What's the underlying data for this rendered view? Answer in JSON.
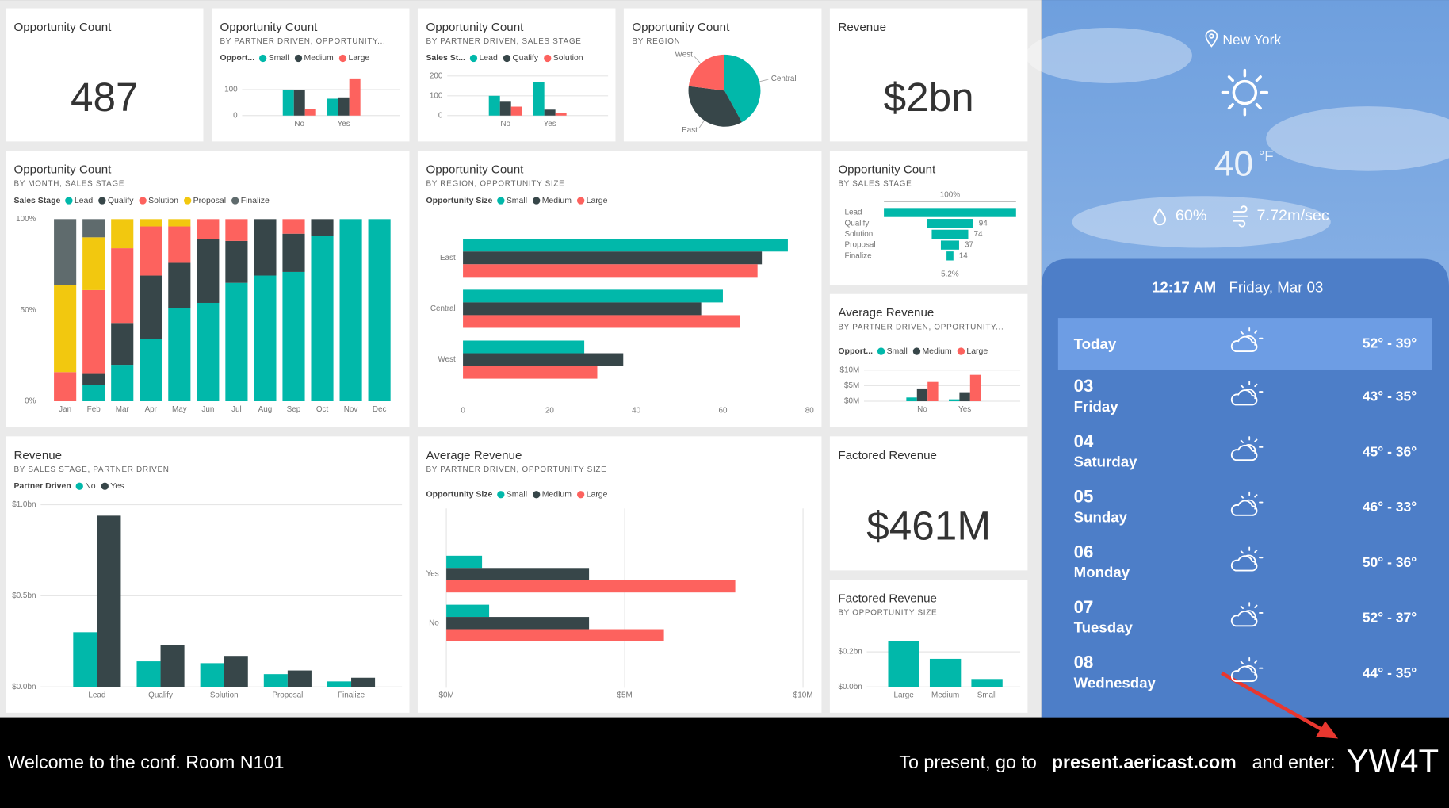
{
  "tiles": [
    {
      "title": "Opportunity Count",
      "value": "487"
    },
    {
      "title": "Opportunity Count",
      "subtitle": "BY PARTNER DRIVEN, OPPORTUNITY...",
      "chart_data": {
        "type": "bar",
        "legend_title": "Opport...",
        "categories": [
          "No",
          "Yes"
        ],
        "series": [
          {
            "name": "Small",
            "color": "#01b8aa",
            "values": [
              100,
              65
            ]
          },
          {
            "name": "Medium",
            "color": "#374649",
            "values": [
              98,
              70
            ]
          },
          {
            "name": "Large",
            "color": "#fd625e",
            "values": [
              25,
              143
            ]
          }
        ],
        "ylim": [
          0,
          160
        ],
        "yticks": [
          0,
          100
        ],
        "grid": true
      }
    },
    {
      "title": "Opportunity Count",
      "subtitle": "BY PARTNER DRIVEN, SALES STAGE",
      "chart_data": {
        "type": "bar",
        "legend_title": "Sales St...",
        "categories": [
          "No",
          "Yes"
        ],
        "series": [
          {
            "name": "Lead",
            "color": "#01b8aa",
            "values": [
              100,
              170
            ]
          },
          {
            "name": "Qualify",
            "color": "#374649",
            "values": [
              70,
              30
            ]
          },
          {
            "name": "Solution",
            "color": "#fd625e",
            "values": [
              45,
              15
            ]
          }
        ],
        "ylim": [
          0,
          210
        ],
        "yticks": [
          0,
          100,
          200
        ],
        "grid": true
      }
    },
    {
      "title": "Opportunity Count",
      "subtitle": "BY REGION",
      "chart_data": {
        "type": "pie",
        "categories": [
          "Central",
          "East",
          "West"
        ],
        "values": [
          42,
          35,
          23
        ],
        "colors": [
          "#01b8aa",
          "#374649",
          "#fd625e"
        ]
      }
    },
    {
      "title": "Revenue",
      "value": "$2bn"
    },
    {
      "title": "Opportunity Count",
      "subtitle": "BY MONTH, SALES STAGE",
      "chart_data": {
        "type": "stacked_bar",
        "legend_title": "Sales Stage",
        "categories": [
          "Jan",
          "Feb",
          "Mar",
          "Apr",
          "May",
          "Jun",
          "Jul",
          "Aug",
          "Sep",
          "Oct",
          "Nov",
          "Dec"
        ],
        "series": [
          {
            "name": "Lead",
            "color": "#01b8aa",
            "values": [
              0,
              9,
              20,
              34,
              51,
              54,
              65,
              69,
              71,
              91,
              100,
              100
            ]
          },
          {
            "name": "Qualify",
            "color": "#374649",
            "values": [
              0,
              6,
              23,
              35,
              25,
              35,
              23,
              31,
              21,
              9,
              0,
              0
            ]
          },
          {
            "name": "Solution",
            "color": "#fd625e",
            "values": [
              16,
              46,
              41,
              27,
              20,
              11,
              12,
              0,
              8,
              0,
              0,
              0
            ]
          },
          {
            "name": "Proposal",
            "color": "#f2c80f",
            "values": [
              48,
              29,
              16,
              4,
              4,
              0,
              0,
              0,
              0,
              0,
              0,
              0
            ]
          },
          {
            "name": "Finalize",
            "color": "#5f6b6d",
            "values": [
              36,
              10,
              0,
              0,
              0,
              0,
              0,
              0,
              0,
              0,
              0,
              0
            ]
          }
        ],
        "ylim": [
          0,
          100
        ],
        "yticks": [
          {
            "value": 0,
            "label": "0%"
          },
          {
            "value": 50,
            "label": "50%"
          },
          {
            "value": 100,
            "label": "100%"
          }
        ],
        "grid": false
      }
    },
    {
      "title": "Opportunity Count",
      "subtitle": "BY REGION, OPPORTUNITY SIZE",
      "chart_data": {
        "type": "hbar",
        "legend_title": "Opportunity Size",
        "categories": [
          "East",
          "Central",
          "West"
        ],
        "series": [
          {
            "name": "Small",
            "color": "#01b8aa",
            "values": [
              75,
              60,
              28
            ]
          },
          {
            "name": "Medium",
            "color": "#374649",
            "values": [
              69,
              55,
              37
            ]
          },
          {
            "name": "Large",
            "color": "#fd625e",
            "values": [
              68,
              64,
              31
            ]
          }
        ],
        "xlim": [
          0,
          80
        ],
        "xticks": [
          0,
          20,
          40,
          60,
          80
        ],
        "grid": false
      }
    },
    {
      "title": "Opportunity Count",
      "subtitle": "BY SALES STAGE",
      "chart_data": {
        "type": "funnel",
        "categories": [
          "Lead",
          "Qualify",
          "Solution",
          "Proposal",
          "Finalize"
        ],
        "values": [
          268,
          94,
          74,
          37,
          14
        ],
        "color": "#01b8aa",
        "annotations": [
          "100%",
          "5.2%"
        ]
      }
    },
    {
      "title": "Average Revenue",
      "subtitle": "BY PARTNER DRIVEN, OPPORTUNITY...",
      "chart_data": {
        "type": "bar",
        "legend_title": "Opport...",
        "categories": [
          "No",
          "Yes"
        ],
        "series": [
          {
            "name": "Small",
            "color": "#01b8aa",
            "values": [
              1200000,
              600000
            ]
          },
          {
            "name": "Medium",
            "color": "#374649",
            "values": [
              4100000,
              2900000
            ]
          },
          {
            "name": "Large",
            "color": "#fd625e",
            "values": [
              6200000,
              8500000
            ]
          }
        ],
        "ylim": [
          0,
          11000000
        ],
        "yticks": [
          {
            "value": 0,
            "label": "$0M"
          },
          {
            "value": 5000000,
            "label": "$5M"
          },
          {
            "value": 10000000,
            "label": "$10M"
          }
        ],
        "grid": true
      }
    },
    {
      "title": "Revenue",
      "subtitle": "BY SALES STAGE, PARTNER DRIVEN",
      "chart_data": {
        "type": "bar",
        "legend_title": "Partner Driven",
        "categories": [
          "Lead",
          "Qualify",
          "Solution",
          "Proposal",
          "Finalize"
        ],
        "series": [
          {
            "name": "No",
            "color": "#01b8aa",
            "values": [
              300000000,
              140000000,
              130000000,
              70000000,
              30000000
            ]
          },
          {
            "name": "Yes",
            "color": "#374649",
            "values": [
              940000000,
              230000000,
              170000000,
              90000000,
              50000000
            ]
          }
        ],
        "ylim": [
          0,
          1000000000
        ],
        "yticks": [
          {
            "value": 0,
            "label": "$0.0bn"
          },
          {
            "value": 500000000,
            "label": "$0.5bn"
          },
          {
            "value": 1000000000,
            "label": "$1.0bn"
          }
        ],
        "grid": true
      }
    },
    {
      "title": "Average Revenue",
      "subtitle": "BY PARTNER DRIVEN, OPPORTUNITY SIZE",
      "chart_data": {
        "type": "hbar",
        "legend_title": "Opportunity Size",
        "categories": [
          "Yes",
          "No"
        ],
        "series": [
          {
            "name": "Small",
            "color": "#01b8aa",
            "values": [
              1000000,
              1200000
            ]
          },
          {
            "name": "Medium",
            "color": "#374649",
            "values": [
              4000000,
              4000000
            ]
          },
          {
            "name": "Large",
            "color": "#fd625e",
            "values": [
              8100000,
              6100000
            ]
          }
        ],
        "xlim": [
          0,
          10000000
        ],
        "xticks": [
          {
            "value": 0,
            "label": "$0M"
          },
          {
            "value": 5000000,
            "label": "$5M"
          },
          {
            "value": 10000000,
            "label": "$10M"
          }
        ],
        "grid": true
      }
    },
    {
      "title": "Factored Revenue",
      "value": "$461M"
    },
    {
      "title": "Factored Revenue",
      "subtitle": "BY OPPORTUNITY SIZE",
      "chart_data": {
        "type": "bar",
        "categories": [
          "Large",
          "Medium",
          "Small"
        ],
        "values": [
          260000000,
          160000000,
          45000000
        ],
        "color": "#01b8aa",
        "ylim": [
          0,
          280000000
        ],
        "yticks": [
          {
            "value": 0,
            "label": "$0.0bn"
          },
          {
            "value": 200000000,
            "label": "$0.2bn"
          }
        ],
        "grid": true
      }
    }
  ],
  "weather": {
    "city": "New York",
    "temperature": "40",
    "unit": "°F",
    "humidity": "60%",
    "wind": "7.72m/sec",
    "time": "12:17 AM",
    "date": "Friday, Mar 03",
    "forecast": [
      {
        "day": "Today",
        "range": "52° - 39°"
      },
      {
        "day": "03",
        "weekday": "Friday",
        "range": "43° - 35°"
      },
      {
        "day": "04",
        "weekday": "Saturday",
        "range": "45° - 36°"
      },
      {
        "day": "05",
        "weekday": "Sunday",
        "range": "46° - 33°"
      },
      {
        "day": "06",
        "weekday": "Monday",
        "range": "50° - 36°"
      },
      {
        "day": "07",
        "weekday": "Tuesday",
        "range": "52° - 37°"
      },
      {
        "day": "08",
        "weekday": "Wednesday",
        "range": "44° - 35°"
      }
    ]
  },
  "footer": {
    "welcome": "Welcome to the conf. Room N101",
    "prompt": "To present, go to",
    "url": "present.aericast.com",
    "enter": "and enter:",
    "code": "YW4T"
  }
}
